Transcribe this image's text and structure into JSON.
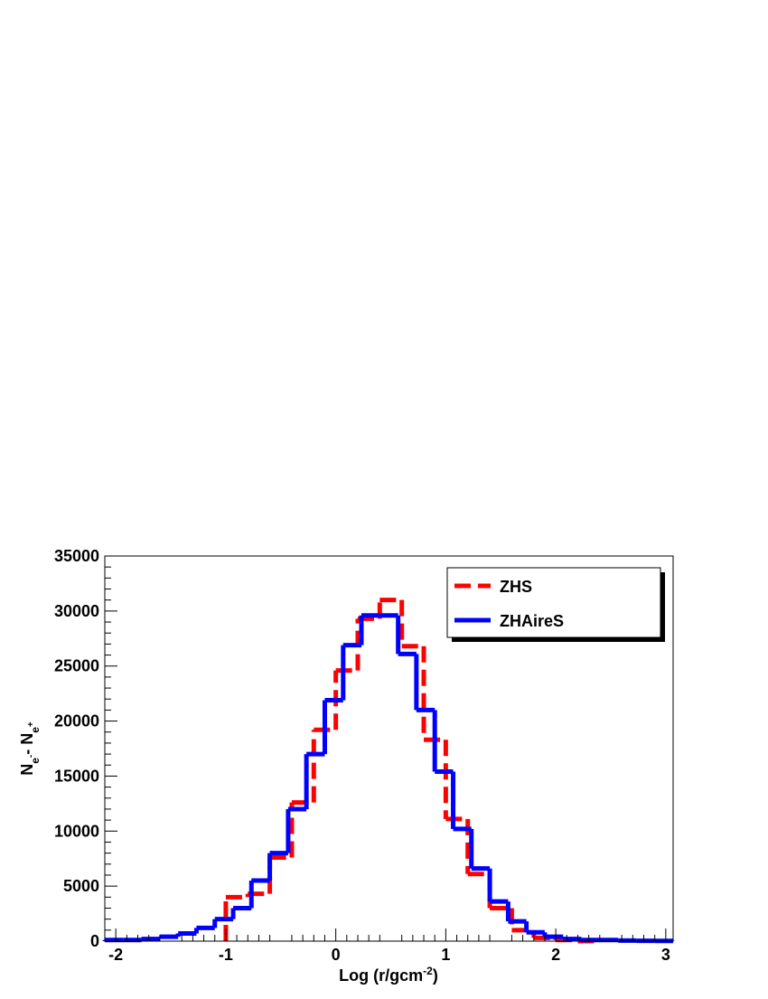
{
  "chart_data": {
    "type": "histogram",
    "xlabel": [
      {
        "text": "Log (r/gcm"
      },
      {
        "text": "-2",
        "shift": "sup"
      },
      {
        "text": ")"
      }
    ],
    "ylabel": [
      {
        "text": "N"
      },
      {
        "text": "e",
        "shift": "sub"
      },
      {
        "text": "-",
        "shift": "subsup"
      },
      {
        "text": "- N"
      },
      {
        "text": "e",
        "shift": "sub"
      },
      {
        "text": "+",
        "shift": "subsup"
      }
    ],
    "xlim": [
      -2.1,
      3.067
    ],
    "ylim": [
      0,
      35000
    ],
    "xticks": [
      -2,
      -1,
      0,
      1,
      2,
      3
    ],
    "yticks": [
      0,
      5000,
      10000,
      15000,
      20000,
      25000,
      30000,
      35000
    ],
    "legend": "top-right",
    "series": [
      {
        "name": "ZHS",
        "color": "#ff0000",
        "dash": true,
        "bins": [
          -1,
          -0.8,
          -0.6,
          -0.4,
          -0.2,
          0,
          0.2,
          0.4,
          0.6,
          0.8,
          1,
          1.2,
          1.4,
          1.6,
          1.8,
          2,
          2.2,
          2.4
        ],
        "values": [
          4000,
          4300,
          7600,
          12600,
          19200,
          24600,
          29300,
          31000,
          26800,
          18300,
          11100,
          6100,
          3000,
          1000,
          300,
          100,
          0
        ]
      },
      {
        "name": "ZHAireS",
        "color": "#0000ff",
        "dash": false,
        "bins": [
          -2.1,
          -1.933,
          -1.767,
          -1.6,
          -1.433,
          -1.267,
          -1.1,
          -0.933,
          -0.767,
          -0.6,
          -0.433,
          -0.267,
          -0.1,
          0.067,
          0.233,
          0.4,
          0.567,
          0.733,
          0.9,
          1.067,
          1.233,
          1.4,
          1.567,
          1.733,
          1.9,
          2.067,
          2.233,
          2.4,
          2.567,
          2.733,
          2.9,
          3.067
        ],
        "values": [
          100,
          100,
          200,
          400,
          700,
          1200,
          2000,
          3000,
          5500,
          8000,
          12000,
          17000,
          21900,
          26900,
          29600,
          29600,
          26100,
          21000,
          15400,
          10200,
          6600,
          3600,
          1800,
          800,
          400,
          200,
          100,
          100,
          50,
          30,
          20
        ]
      }
    ]
  }
}
